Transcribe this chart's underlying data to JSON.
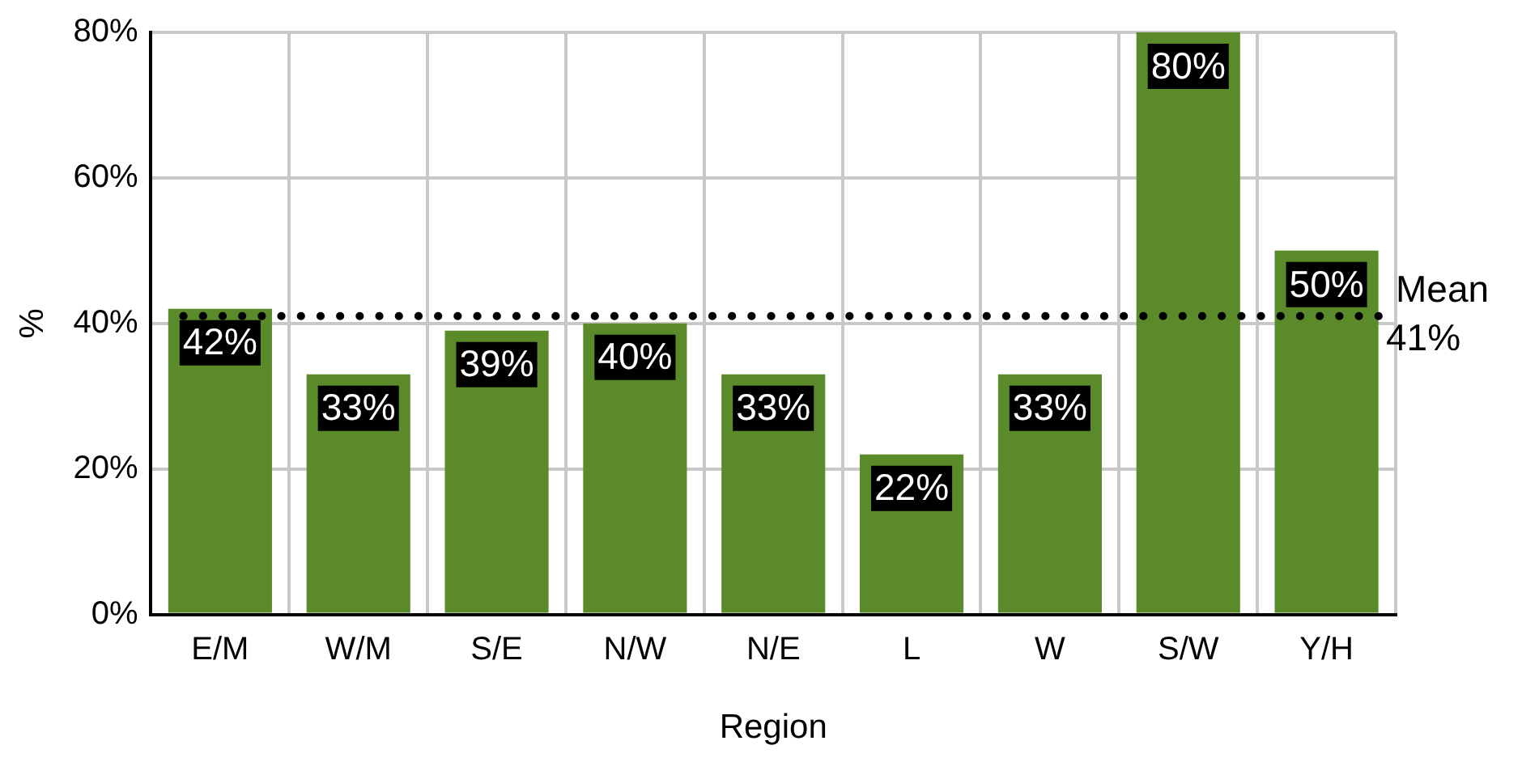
{
  "chart_data": {
    "type": "bar",
    "xlabel": "Region",
    "ylabel": "%",
    "categories": [
      "E/M",
      "W/M",
      "S/E",
      "N/W",
      "N/E",
      "L",
      "W",
      "S/W",
      "Y/H"
    ],
    "values": [
      42,
      33,
      39,
      40,
      33,
      22,
      33,
      80,
      50
    ],
    "value_labels": [
      "42%",
      "33%",
      "39%",
      "40%",
      "33%",
      "22%",
      "33%",
      "80%",
      "50%"
    ],
    "color": "#5a8a2a",
    "ylim": [
      0,
      80
    ],
    "yticks": [
      {
        "value": 0,
        "label": "0%"
      },
      {
        "value": 20,
        "label": "20%"
      },
      {
        "value": 40,
        "label": "40%"
      },
      {
        "value": 60,
        "label": "60%"
      },
      {
        "value": 80,
        "label": "80%"
      }
    ],
    "grid": true,
    "legend": false,
    "ref_lines": [
      {
        "axis": "y",
        "value": 41,
        "label": "Mean\n41%",
        "color": "#000000",
        "line_style": "dotted"
      }
    ]
  }
}
